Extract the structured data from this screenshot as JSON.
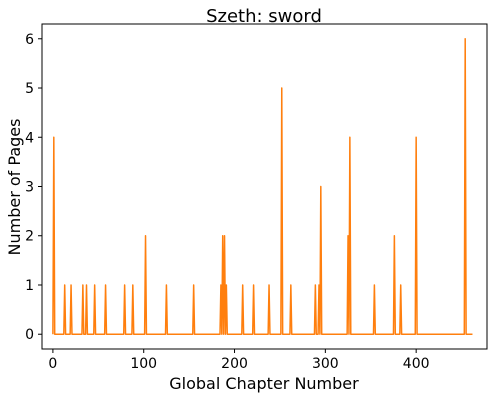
{
  "chart_data": {
    "type": "line",
    "title": "Szeth: sword",
    "xlabel": "Global Chapter Number",
    "ylabel": "Number of Pages",
    "xlim": [
      -12,
      478
    ],
    "ylim": [
      -0.3,
      6.3
    ],
    "xticks": [
      0,
      100,
      200,
      300,
      400
    ],
    "yticks": [
      0,
      1,
      2,
      3,
      4,
      5,
      6
    ],
    "grid": false,
    "line_color": "#ff7f0e",
    "series": [
      {
        "spikes": [
          {
            "x": 1,
            "y": 4
          },
          {
            "x": 13,
            "y": 1
          },
          {
            "x": 20,
            "y": 1
          },
          {
            "x": 33,
            "y": 1
          },
          {
            "x": 37,
            "y": 1
          },
          {
            "x": 46,
            "y": 1
          },
          {
            "x": 58,
            "y": 1
          },
          {
            "x": 79,
            "y": 1
          },
          {
            "x": 88,
            "y": 1
          },
          {
            "x": 102,
            "y": 2
          },
          {
            "x": 125,
            "y": 1
          },
          {
            "x": 155,
            "y": 1
          },
          {
            "x": 185,
            "y": 1
          },
          {
            "x": 187,
            "y": 2
          },
          {
            "x": 189,
            "y": 2
          },
          {
            "x": 191,
            "y": 1
          },
          {
            "x": 209,
            "y": 1
          },
          {
            "x": 221,
            "y": 1
          },
          {
            "x": 238,
            "y": 1
          },
          {
            "x": 252,
            "y": 5
          },
          {
            "x": 262,
            "y": 1
          },
          {
            "x": 289,
            "y": 1
          },
          {
            "x": 293,
            "y": 1
          },
          {
            "x": 295,
            "y": 3
          },
          {
            "x": 325,
            "y": 2
          },
          {
            "x": 327,
            "y": 4
          },
          {
            "x": 354,
            "y": 1
          },
          {
            "x": 376,
            "y": 2
          },
          {
            "x": 383,
            "y": 1
          },
          {
            "x": 400,
            "y": 4
          },
          {
            "x": 454,
            "y": 6
          }
        ],
        "x_start": 0,
        "x_end": 462,
        "baseline": 0
      }
    ]
  }
}
